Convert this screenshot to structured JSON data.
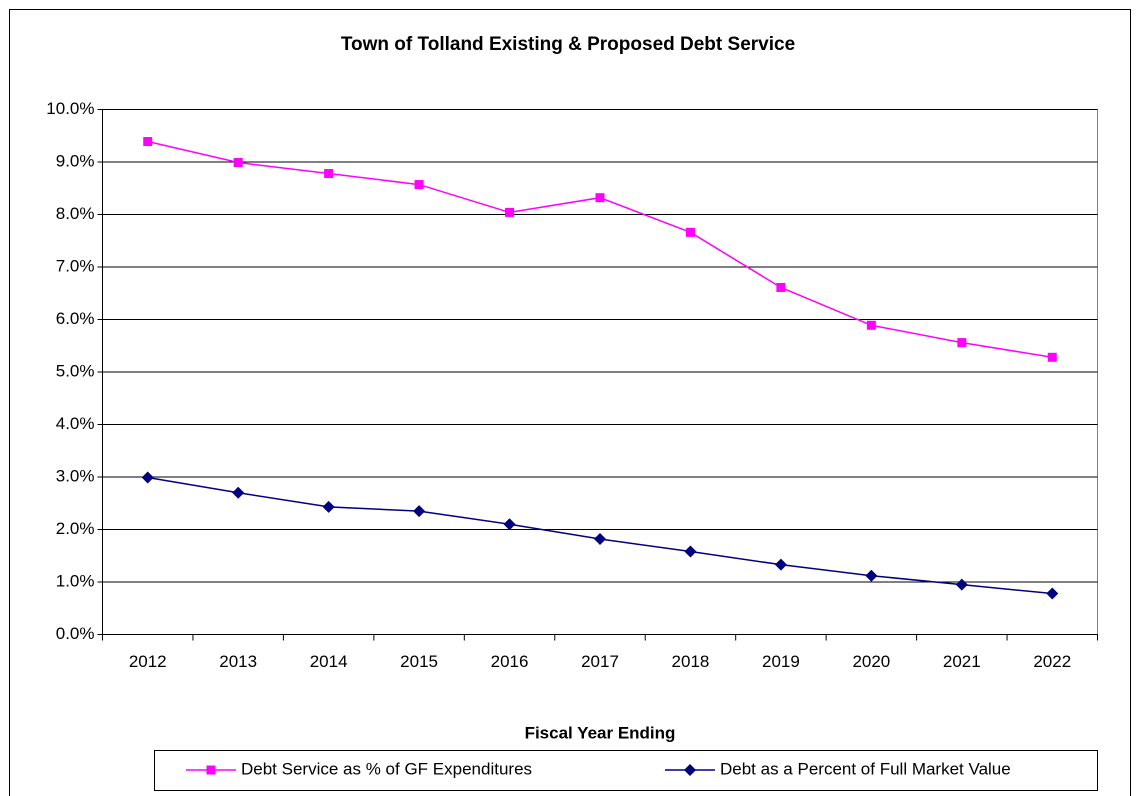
{
  "chart_data": {
    "type": "line",
    "title": "Town of Tolland Existing & Proposed Debt Service",
    "x_label": "Fiscal Year Ending",
    "categories": [
      "2012",
      "2013",
      "2014",
      "2015",
      "2016",
      "2017",
      "2018",
      "2019",
      "2020",
      "2021",
      "2022"
    ],
    "series": [
      {
        "name": "Debt Service as % of GF Expenditures",
        "color": "#ff00ff",
        "marker": "square",
        "values": [
          9.39,
          8.99,
          8.78,
          8.57,
          8.04,
          8.32,
          7.66,
          6.61,
          5.89,
          5.56,
          5.28
        ]
      },
      {
        "name": "Debt as a Percent of Full Market Value",
        "color": "#000080",
        "marker": "diamond",
        "values": [
          2.99,
          2.7,
          2.43,
          2.35,
          2.1,
          1.82,
          1.58,
          1.33,
          1.12,
          0.95,
          0.78
        ]
      }
    ],
    "ylim": [
      0,
      10
    ],
    "yticks": [
      {
        "value": 0,
        "label": "0.0%"
      },
      {
        "value": 1,
        "label": "1.0%"
      },
      {
        "value": 2,
        "label": "2.0%"
      },
      {
        "value": 3,
        "label": "3.0%"
      },
      {
        "value": 4,
        "label": "4.0%"
      },
      {
        "value": 5,
        "label": "5.0%"
      },
      {
        "value": 6,
        "label": "6.0%"
      },
      {
        "value": 7,
        "label": "7.0%"
      },
      {
        "value": 8,
        "label": "8.0%"
      },
      {
        "value": 9,
        "label": "9.0%"
      },
      {
        "value": 10,
        "label": "10.0%"
      }
    ],
    "grid": true,
    "legend": "bottom"
  }
}
